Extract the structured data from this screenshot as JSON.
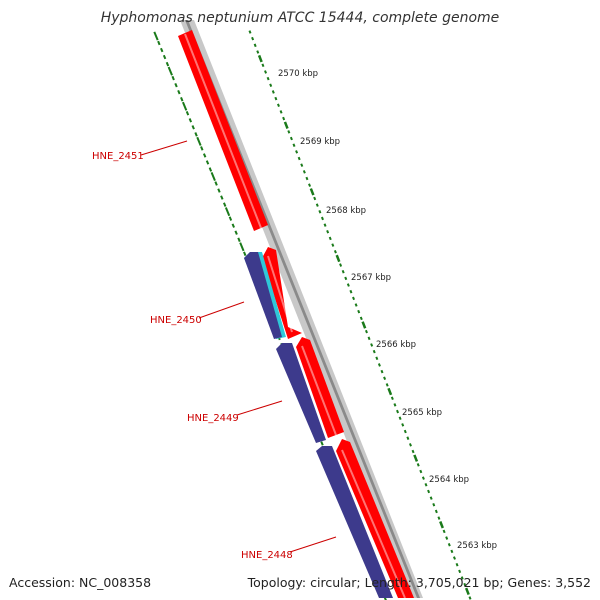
{
  "title": "Hyphomonas neptunium ATCC 15444, complete genome",
  "footer": {
    "accession": "Accession: NC_008358",
    "summary": "Topology: circular; Length: 3,705,021 bp; Genes: 3,552"
  },
  "colors": {
    "forward_cds": "#ff0000",
    "reverse_cds": "#3d3a8c",
    "rna": "#2fc8d8",
    "backbone": "#8a8a8a",
    "gc_ticks": "#1a7a1a",
    "label": "#cc0000"
  },
  "scale": {
    "unit": "kbp",
    "ticks": [
      {
        "kbp": 2570,
        "label": "2570 kbp"
      },
      {
        "kbp": 2569,
        "label": "2569 kbp"
      },
      {
        "kbp": 2568,
        "label": "2568 kbp"
      },
      {
        "kbp": 2567,
        "label": "2567 kbp"
      },
      {
        "kbp": 2566,
        "label": "2566 kbp"
      },
      {
        "kbp": 2565,
        "label": "2565 kbp"
      },
      {
        "kbp": 2564,
        "label": "2564 kbp"
      },
      {
        "kbp": 2563,
        "label": "2563 kbp"
      }
    ]
  },
  "genes": [
    {
      "label": "HNE_2451"
    },
    {
      "label": "HNE_2450"
    },
    {
      "label": "HNE_2449"
    },
    {
      "label": "HNE_2448"
    }
  ]
}
